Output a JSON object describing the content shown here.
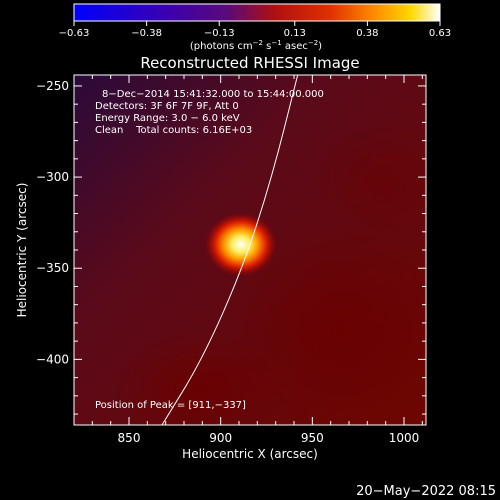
{
  "chart_data": {
    "type": "heatmap",
    "title": "Reconstructed RHESSI Image",
    "xlabel": "Heliocentric X (arcsec)",
    "ylabel": "Heliocentric Y (arcsec)",
    "xlim": [
      820,
      1012
    ],
    "ylim": [
      -436,
      -244
    ],
    "x_ticks": [
      850,
      900,
      950,
      1000
    ],
    "x_tick_labels": [
      "850",
      "900",
      "950",
      "1000"
    ],
    "y_ticks": [
      -250,
      -300,
      -350,
      -400
    ],
    "y_tick_labels": [
      "−250",
      "−300",
      "−350",
      "−400"
    ],
    "colorbar": {
      "range": [
        -0.63,
        0.63
      ],
      "ticks": [
        -0.63,
        -0.38,
        -0.13,
        0.13,
        0.38,
        0.63
      ],
      "tick_labels": [
        "−0.63",
        "−0.38",
        "−0.13",
        "0.13",
        "0.38",
        "0.63"
      ],
      "units_prefix": "(photons cm",
      "units_sup1": "−2",
      "units_mid1": " s",
      "units_sup2": "−1",
      "units_mid2": " asec",
      "units_sup3": "−2",
      "units_suffix": ")"
    },
    "annotations": {
      "time": "8−Dec−2014 15:41:32.000 to 15:44:00.000",
      "detectors": "Detectors: 3F 6F 7F 9F, Att 0",
      "energy": "Energy Range: 3.0 − 6.0 keV",
      "clean": "Clean    Total counts: 6.16E+03",
      "peak": "Position of Peak = [911,−337]"
    },
    "peak": {
      "x": 911,
      "y": -337,
      "value": 0.63
    },
    "background_level": 0.2,
    "limb_curve": [
      [
        868,
        -436
      ],
      [
        890,
        -400
      ],
      [
        912,
        -350
      ],
      [
        928,
        -300
      ],
      [
        942,
        -244
      ]
    ]
  },
  "footer": {
    "date": "20−May−2022 08:15"
  }
}
